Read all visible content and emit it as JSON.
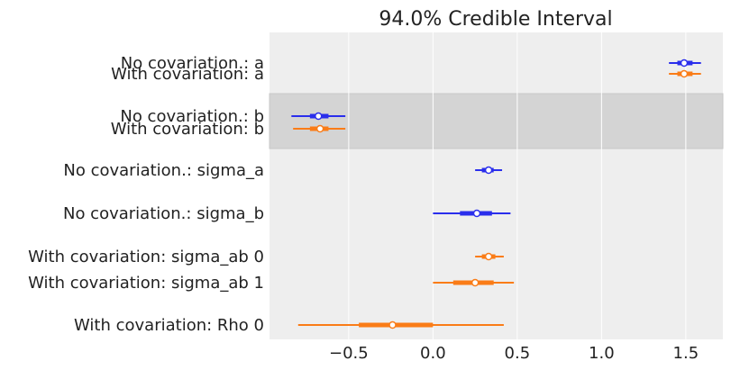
{
  "chart_data": {
    "type": "forest",
    "title": "94.0% Credible Interval",
    "xlabel": "",
    "ylabel": "",
    "xlim": [
      -0.97,
      1.72
    ],
    "xticks": [
      -0.5,
      0.0,
      0.5,
      1.0,
      1.5
    ],
    "xtick_labels": [
      "−0.5",
      "0.0",
      "0.5",
      "1.0",
      "1.5"
    ],
    "grid": true,
    "colors": {
      "No covariation.": "#2a2eec",
      "With covariation": "#fa7c17",
      "background": "#eeeeee",
      "band": "#d4d4d4",
      "grid": "#ffffff"
    },
    "shaded_groups": [
      1
    ],
    "groups": [
      {
        "rows": [
          {
            "label": "No covariation.: a",
            "model": "No covariation.",
            "hdi_low": 1.4,
            "hdi_high": 1.59,
            "iqr_low": 1.45,
            "iqr_high": 1.54,
            "median": 1.49
          },
          {
            "label": "With covariation: a",
            "model": "With covariation",
            "hdi_low": 1.4,
            "hdi_high": 1.59,
            "iqr_low": 1.45,
            "iqr_high": 1.54,
            "median": 1.49
          }
        ]
      },
      {
        "rows": [
          {
            "label": "No covariation.: b",
            "model": "No covariation.",
            "hdi_low": -0.84,
            "hdi_high": -0.52,
            "iqr_low": -0.73,
            "iqr_high": -0.62,
            "median": -0.68
          },
          {
            "label": "With covariation: b",
            "model": "With covariation",
            "hdi_low": -0.83,
            "hdi_high": -0.52,
            "iqr_low": -0.73,
            "iqr_high": -0.62,
            "median": -0.67
          }
        ]
      },
      {
        "rows": [
          {
            "label": "No covariation.: sigma_a",
            "model": "No covariation.",
            "hdi_low": 0.25,
            "hdi_high": 0.41,
            "iqr_low": 0.29,
            "iqr_high": 0.36,
            "median": 0.33
          }
        ]
      },
      {
        "rows": [
          {
            "label": "No covariation.: sigma_b",
            "model": "No covariation.",
            "hdi_low": 0.0,
            "hdi_high": 0.46,
            "iqr_low": 0.16,
            "iqr_high": 0.35,
            "median": 0.26
          }
        ]
      },
      {
        "rows": [
          {
            "label": "With covariation: sigma_ab 0",
            "model": "With covariation",
            "hdi_low": 0.25,
            "hdi_high": 0.42,
            "iqr_low": 0.29,
            "iqr_high": 0.37,
            "median": 0.33
          },
          {
            "label": "With covariation: sigma_ab 1",
            "model": "With covariation",
            "hdi_low": 0.0,
            "hdi_high": 0.48,
            "iqr_low": 0.12,
            "iqr_high": 0.36,
            "median": 0.25
          }
        ]
      },
      {
        "rows": [
          {
            "label": "With covariation: Rho 0",
            "model": "With covariation",
            "hdi_low": -0.8,
            "hdi_high": 0.42,
            "iqr_low": -0.44,
            "iqr_high": 0.0,
            "median": -0.24
          }
        ]
      }
    ]
  }
}
